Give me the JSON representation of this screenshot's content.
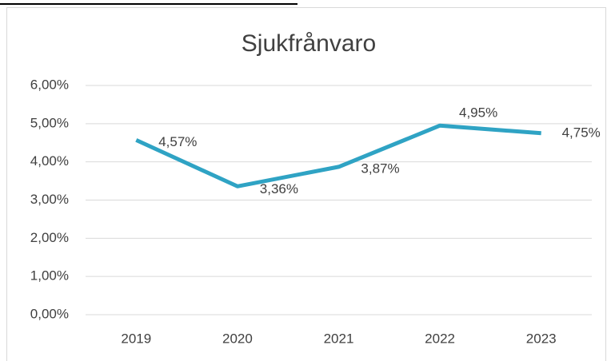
{
  "chart_data": {
    "type": "line",
    "title": "Sjukfrånvaro",
    "categories": [
      "2019",
      "2020",
      "2021",
      "2022",
      "2023"
    ],
    "series": [
      {
        "name": "Sjukfrånvaro",
        "color": "#2fa3c4",
        "values": [
          4.57,
          3.36,
          3.87,
          4.95,
          4.75
        ],
        "value_labels": [
          "4,57%",
          "3,36%",
          "3,87%",
          "4,95%",
          "4,75%"
        ]
      }
    ],
    "ylim": [
      0,
      6
    ],
    "yticks": [
      {
        "value": 0,
        "label": "0,00%"
      },
      {
        "value": 1,
        "label": "1,00%"
      },
      {
        "value": 2,
        "label": "2,00%"
      },
      {
        "value": 3,
        "label": "3,00%"
      },
      {
        "value": 4,
        "label": "4,00%"
      },
      {
        "value": 5,
        "label": "5,00%"
      },
      {
        "value": 6,
        "label": "6,00%"
      }
    ],
    "grid": true
  }
}
